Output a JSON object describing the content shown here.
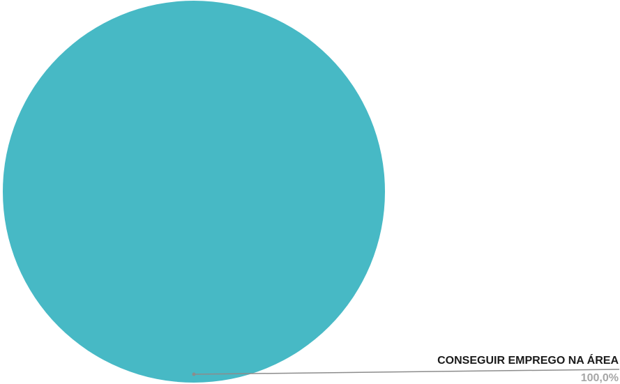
{
  "chart_data": {
    "type": "pie",
    "title": "",
    "slices": [
      {
        "label": "CONSEGUIR EMPREGO NA ÁREA",
        "value": 100.0,
        "value_label": "100,0%",
        "color": "#47b9c5"
      }
    ],
    "leader_line_color": "#8c8c8c",
    "legend": "none"
  }
}
